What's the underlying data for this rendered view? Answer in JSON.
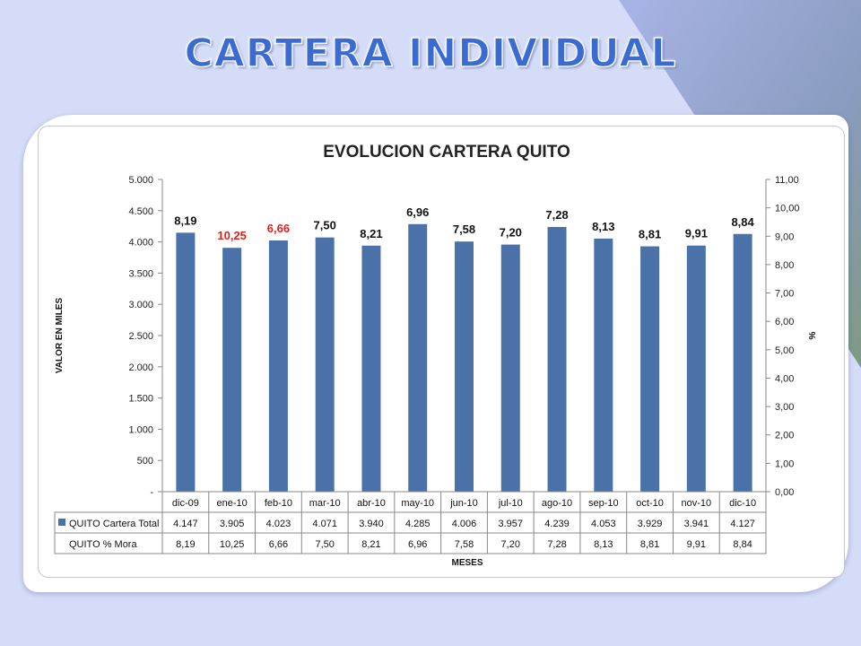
{
  "slide": {
    "title": "CARTERA INDIVIDUAL"
  },
  "colors": {
    "bar": "#4a72a8",
    "highlight_label": "#e0201b",
    "normal_label": "#111111",
    "background": "#d4dcf8"
  },
  "chart_data": {
    "type": "bar",
    "title": "EVOLUCION CARTERA QUITO",
    "xlabel": "MESES",
    "ylabel": "VALOR EN MILES",
    "y2label": "%",
    "categories": [
      "dic-09",
      "ene-10",
      "feb-10",
      "mar-10",
      "abr-10",
      "may-10",
      "jun-10",
      "jul-10",
      "ago-10",
      "sep-10",
      "oct-10",
      "nov-10",
      "dic-10"
    ],
    "ylim": [
      0,
      5000
    ],
    "y_ticks": [
      "-",
      "500",
      "1.000",
      "1.500",
      "2.000",
      "2.500",
      "3.000",
      "3.500",
      "4.000",
      "4.500",
      "5.000"
    ],
    "y2lim": [
      0,
      11
    ],
    "y2_ticks": [
      "0,00",
      "1,00",
      "2,00",
      "3,00",
      "4,00",
      "5,00",
      "6,00",
      "7,00",
      "8,00",
      "9,00",
      "10,00",
      "11,00"
    ],
    "grid": false,
    "highlighted_labels": [
      "ene-10",
      "feb-10"
    ],
    "series": [
      {
        "name": "QUITO Cartera Total",
        "values": [
          4147,
          3905,
          4023,
          4071,
          3940,
          4285,
          4006,
          3957,
          4239,
          4053,
          3929,
          3941,
          4127
        ],
        "display": [
          "4.147",
          "3.905",
          "4.023",
          "4.071",
          "3.940",
          "4.285",
          "4.006",
          "3.957",
          "4.239",
          "4.053",
          "3.929",
          "3.941",
          "4.127"
        ]
      },
      {
        "name": "QUITO % Mora",
        "values": [
          8.19,
          10.25,
          6.66,
          7.5,
          8.21,
          6.96,
          7.58,
          7.2,
          7.28,
          8.13,
          8.81,
          9.91,
          8.84
        ],
        "display": [
          "8,19",
          "10,25",
          "6,66",
          "7,50",
          "8,21",
          "6,96",
          "7,58",
          "7,20",
          "7,28",
          "8,13",
          "8,81",
          "9,91",
          "8,84"
        ]
      }
    ]
  }
}
